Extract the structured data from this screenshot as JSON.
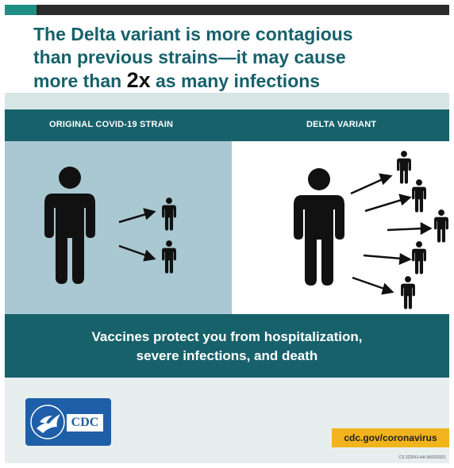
{
  "headline": {
    "line1": "The Delta variant is more contagious",
    "line2": "than previous strains—it may cause",
    "line3_before": "more than ",
    "line3_emphasis": "2x",
    "line3_after": " as many infections"
  },
  "columns": {
    "original_label": "ORIGINAL COVID-19 STRAIN",
    "delta_label": "DELTA VARIANT"
  },
  "message": {
    "line1": "Vaccines protect you from hospitalization,",
    "line2": "severe infections, and death"
  },
  "footer": {
    "logo_text": "CDC",
    "url": "cdc.gov/coronavirus",
    "code": "CS 322641-AA 06/02/2021"
  },
  "icons": {
    "person": "person-icon",
    "arrow": "arrow-icon",
    "logo": "hhs-eagle-icon"
  },
  "colors": {
    "teal_dark": "#17616b",
    "teal_accent": "#1f8f84",
    "panel_blue": "#a9c8d1",
    "cdc_blue": "#1f5ea8",
    "badge_yellow": "#f2b41c"
  },
  "comparison": {
    "original_infections": 2,
    "delta_infections": 5
  }
}
